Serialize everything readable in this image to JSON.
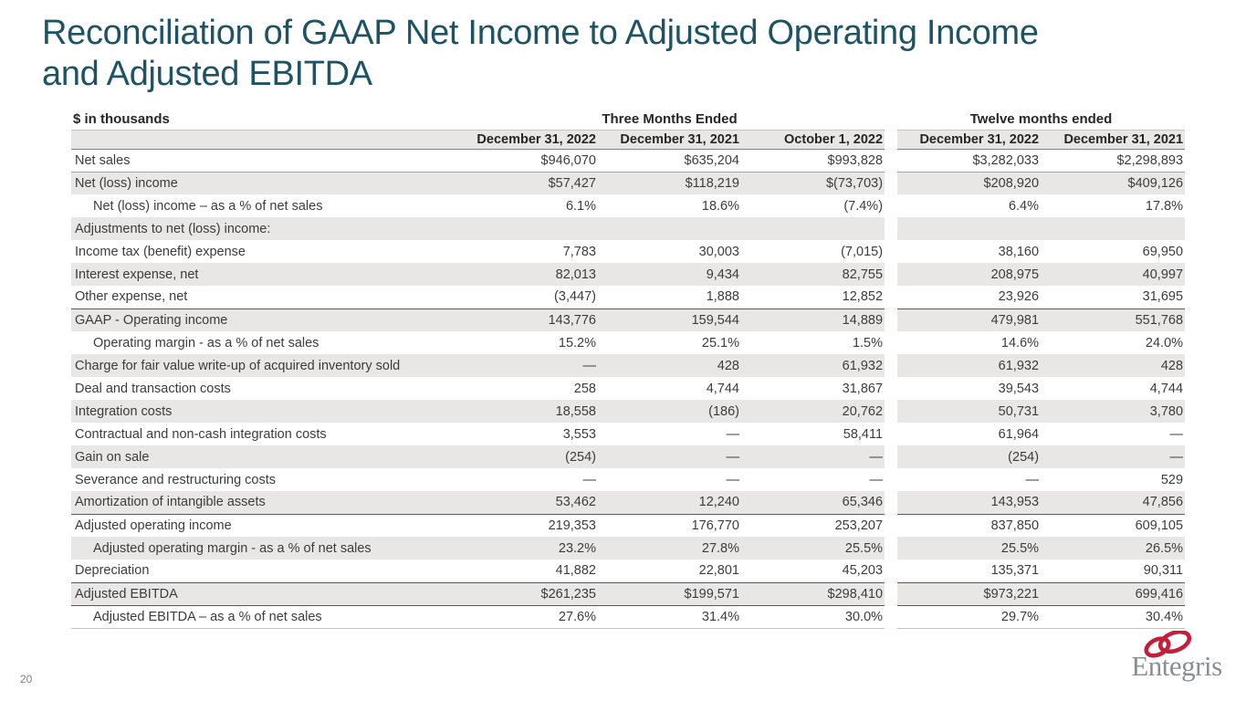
{
  "slide": {
    "title_line1": "Reconciliation of GAAP Net Income to Adjusted Operating Income",
    "title_line2": "and Adjusted EBITDA",
    "page_number": "20"
  },
  "table": {
    "units_label": "$ in thousands",
    "group_headers": {
      "three_months": "Three Months Ended",
      "twelve_months": "Twelve months ended"
    },
    "column_headers": [
      "December 31, 2022",
      "December 31, 2021",
      "October 1, 2022",
      "December 31, 2022",
      "December 31, 2021"
    ],
    "rows": [
      {
        "label": "Net sales",
        "indent": false,
        "shaded": false,
        "rule_top": false,
        "rule_bottom": "mid",
        "values": [
          "$946,070",
          "$635,204",
          "$993,828",
          "$3,282,033",
          "$2,298,893"
        ]
      },
      {
        "label": "Net (loss) income",
        "indent": false,
        "shaded": true,
        "rule_top": false,
        "rule_bottom": "",
        "values": [
          "$57,427",
          "$118,219",
          "$(73,703)",
          "$208,920",
          "$409,126"
        ]
      },
      {
        "label": "Net (loss) income – as a % of net sales",
        "indent": true,
        "shaded": false,
        "rule_top": false,
        "rule_bottom": "",
        "values": [
          "6.1%",
          "18.6%",
          "(7.4%)",
          "6.4%",
          "17.8%"
        ]
      },
      {
        "label": "Adjustments to net (loss) income:",
        "indent": false,
        "shaded": true,
        "rule_top": false,
        "rule_bottom": "",
        "values": [
          "",
          "",
          "",
          "",
          ""
        ]
      },
      {
        "label": "Income tax (benefit) expense",
        "indent": false,
        "shaded": false,
        "rule_top": false,
        "rule_bottom": "",
        "values": [
          "7,783",
          "30,003",
          "(7,015)",
          "38,160",
          "69,950"
        ]
      },
      {
        "label": "Interest expense, net",
        "indent": false,
        "shaded": true,
        "rule_top": false,
        "rule_bottom": "",
        "values": [
          "82,013",
          "9,434",
          "82,755",
          "208,975",
          "40,997"
        ]
      },
      {
        "label": "Other expense, net",
        "indent": false,
        "shaded": false,
        "rule_top": false,
        "rule_bottom": "",
        "values": [
          "(3,447)",
          "1,888",
          "12,852",
          "23,926",
          "31,695"
        ]
      },
      {
        "label": "GAAP - Operating income",
        "indent": false,
        "shaded": true,
        "rule_top": true,
        "rule_bottom": "",
        "values": [
          "143,776",
          "159,544",
          "14,889",
          "479,981",
          "551,768"
        ]
      },
      {
        "label": "Operating margin - as a % of net sales",
        "indent": true,
        "shaded": false,
        "rule_top": false,
        "rule_bottom": "",
        "values": [
          "15.2%",
          "25.1%",
          "1.5%",
          "14.6%",
          "24.0%"
        ]
      },
      {
        "label": "Charge for fair value write-up of acquired inventory sold",
        "indent": false,
        "shaded": true,
        "rule_top": false,
        "rule_bottom": "",
        "values": [
          "—",
          "428",
          "61,932",
          "61,932",
          "428"
        ]
      },
      {
        "label": "Deal and transaction costs",
        "indent": false,
        "shaded": false,
        "rule_top": false,
        "rule_bottom": "",
        "values": [
          "258",
          "4,744",
          "31,867",
          "39,543",
          "4,744"
        ]
      },
      {
        "label": "Integration costs",
        "indent": false,
        "shaded": true,
        "rule_top": false,
        "rule_bottom": "",
        "values": [
          "18,558",
          "(186)",
          "20,762",
          "50,731",
          "3,780"
        ]
      },
      {
        "label": "Contractual and non-cash integration costs",
        "indent": false,
        "shaded": false,
        "rule_top": false,
        "rule_bottom": "",
        "values": [
          "3,553",
          "—",
          "58,411",
          "61,964",
          "—"
        ]
      },
      {
        "label": "Gain on sale",
        "indent": false,
        "shaded": true,
        "rule_top": false,
        "rule_bottom": "",
        "values": [
          "(254)",
          "—",
          "—",
          "(254)",
          "—"
        ]
      },
      {
        "label": "Severance and restructuring costs",
        "indent": false,
        "shaded": false,
        "rule_top": false,
        "rule_bottom": "",
        "values": [
          "—",
          "—",
          "—",
          "—",
          "529"
        ]
      },
      {
        "label": "Amortization of intangible assets",
        "indent": false,
        "shaded": true,
        "rule_top": false,
        "rule_bottom": "",
        "values": [
          "53,462",
          "12,240",
          "65,346",
          "143,953",
          "47,856"
        ]
      },
      {
        "label": "Adjusted operating income",
        "indent": false,
        "shaded": false,
        "rule_top": true,
        "rule_bottom": "",
        "values": [
          "219,353",
          "176,770",
          "253,207",
          "837,850",
          "609,105"
        ]
      },
      {
        "label": "Adjusted operating margin - as a % of net sales",
        "indent": true,
        "shaded": true,
        "rule_top": false,
        "rule_bottom": "",
        "values": [
          "23.2%",
          "27.8%",
          "25.5%",
          "25.5%",
          "26.5%"
        ]
      },
      {
        "label": "Depreciation",
        "indent": false,
        "shaded": false,
        "rule_top": false,
        "rule_bottom": "",
        "values": [
          "41,882",
          "22,801",
          "45,203",
          "135,371",
          "90,311"
        ]
      },
      {
        "label": "Adjusted EBITDA",
        "indent": false,
        "shaded": true,
        "rule_top": true,
        "rule_bottom": "dark",
        "values": [
          "$261,235",
          "$199,571",
          "$298,410",
          "$973,221",
          "699,416"
        ]
      },
      {
        "label": "Adjusted EBITDA – as a % of net sales",
        "indent": true,
        "shaded": false,
        "rule_top": false,
        "rule_bottom": "light",
        "values": [
          "27.6%",
          "31.4%",
          "30.0%",
          "29.7%",
          "30.4%"
        ]
      }
    ]
  },
  "logo": {
    "brand": "Entegris"
  },
  "colors": {
    "title": "#1e5363",
    "row_shade": "#e8e7e5",
    "rule_dark": "#595959",
    "logo_red": "#c41e3a",
    "logo_gray": "#8b8e90"
  }
}
